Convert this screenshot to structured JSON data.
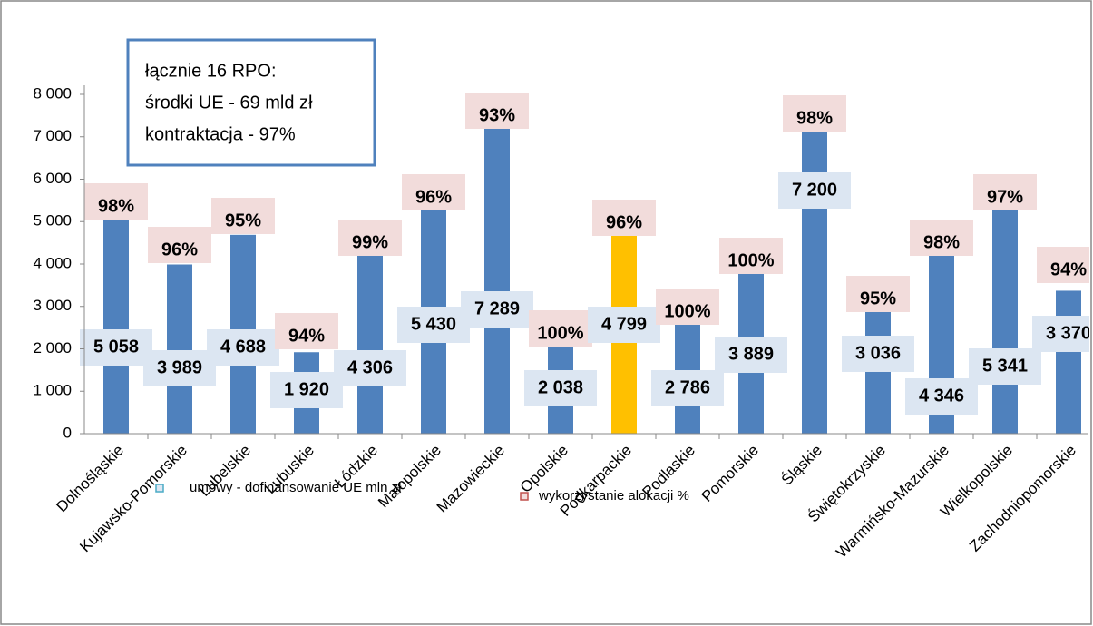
{
  "chart_data": {
    "type": "bar",
    "annotation": [
      "łącznie 16 RPO:",
      "środki UE - 69 mld zł",
      "kontraktacja - 97%"
    ],
    "categories": [
      "Dolnośląskie",
      "Kujawsko-Pomorskie",
      "Lubelskie",
      "Lubuskie",
      "Łódzkie",
      "Małopolskie",
      "Mazowieckie",
      "Opolskie",
      "Podkarpackie",
      "Podlaskie",
      "Pomorskie",
      "Śląskie",
      "Świętokrzyskie",
      "Warmińsko-Mazurskie",
      "Wielkopolskie",
      "Zachodniopomorskie"
    ],
    "series": [
      {
        "name": "umowy - dofinansowanie UE mln zł",
        "color": "#4f81bd",
        "legend_color": "#4bacc6",
        "label_fill": "#dce6f2",
        "colors": [
          "#4f81bd",
          "#4f81bd",
          "#4f81bd",
          "#4f81bd",
          "#4f81bd",
          "#4f81bd",
          "#4f81bd",
          "#4f81bd",
          "#ffc000",
          "#4f81bd",
          "#4f81bd",
          "#4f81bd",
          "#4f81bd",
          "#4f81bd",
          "#4f81bd",
          "#4f81bd"
        ],
        "values": [
          5058,
          3989,
          4688,
          1920,
          4306,
          5430,
          7289,
          2038,
          4799,
          2786,
          3889,
          7200,
          3036,
          4346,
          5341,
          3370
        ],
        "value_labels": [
          "5 058",
          "3 989",
          "4 688",
          "1 920",
          "4 306",
          "5 430",
          "7 289",
          "2 038",
          "4 799",
          "2 786",
          "3 889",
          "7 200",
          "3 036",
          "4 346",
          "5 341",
          "3 370"
        ]
      },
      {
        "name": "wykorzystanie alokacji %",
        "color": "#f2dcdb",
        "legend_color": "#c0504d",
        "values": [
          98,
          96,
          95,
          94,
          99,
          96,
          93,
          100,
          96,
          100,
          100,
          98,
          95,
          98,
          97,
          94
        ],
        "value_labels": [
          "98%",
          "96%",
          "95%",
          "94%",
          "99%",
          "96%",
          "93%",
          "100%",
          "96%",
          "100%",
          "100%",
          "98%",
          "95%",
          "98%",
          "97%",
          "94%"
        ]
      }
    ],
    "ylim": [
      0,
      8000
    ],
    "yticks": [
      0,
      {
        "value": 1000,
        "label": "1 000"
      },
      {
        "value": 2000,
        "label": "2 000"
      },
      {
        "value": 3000,
        "label": "3 000"
      },
      {
        "value": 4000,
        "label": "4 000"
      },
      {
        "value": 5000,
        "label": "5 000"
      },
      {
        "value": 6000,
        "label": "6 000"
      },
      {
        "value": 7000,
        "label": "7 000"
      },
      {
        "value": 8000,
        "label": "8 000"
      }
    ]
  }
}
